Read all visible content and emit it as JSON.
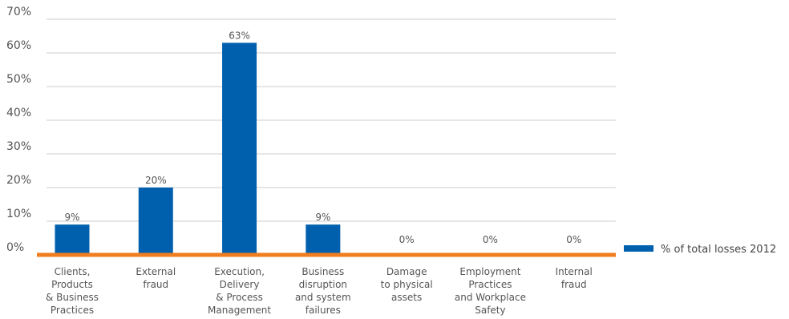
{
  "chart_data": {
    "type": "bar",
    "categories": [
      [
        "Clients,",
        "Products",
        "& Business",
        "Practices"
      ],
      [
        "External",
        "fraud"
      ],
      [
        "Execution,",
        "Delivery",
        "& Process",
        "Management"
      ],
      [
        "Business",
        "disruption",
        "and system",
        "failures"
      ],
      [
        "Damage",
        "to physical",
        "assets"
      ],
      [
        "Employment",
        "Practices",
        "and Workplace",
        "Safety"
      ],
      [
        "Internal",
        "fraud"
      ]
    ],
    "series": [
      {
        "name": "% of total losses 2012",
        "values": [
          9,
          20,
          63,
          9,
          0,
          0,
          0
        ],
        "data_labels": [
          "9%",
          "20%",
          "63%",
          "9%",
          "0%",
          "0%",
          "0%"
        ]
      }
    ],
    "y_ticks": [
      "0%",
      "10%",
      "20%",
      "30%",
      "40%",
      "50%",
      "60%",
      "70%"
    ],
    "ylim": [
      0,
      70
    ],
    "grid": true,
    "legend_position": "right",
    "colors": {
      "bar": "#0060ae",
      "baseline": "#f07d1e",
      "grid": "#cccccc"
    }
  }
}
